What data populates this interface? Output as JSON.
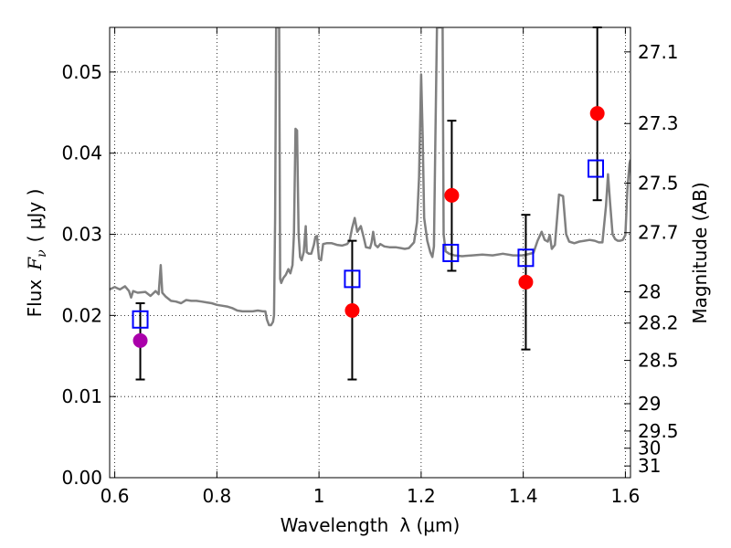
{
  "chart_data": {
    "type": "scatter",
    "title": "",
    "xlabel": "Wavelength",
    "xlabel_math": "λ (μm)",
    "ylabel": "Flux",
    "ylabel_math": "F",
    "ylabel_sub": "ν",
    "ylabel_unit": "( μJy )",
    "y2label": "Magnitude (AB)",
    "xlim": [
      0.59,
      1.61
    ],
    "ylim": [
      0.0,
      0.0555
    ],
    "grid": true,
    "x_ticks": [
      {
        "value": 0.6,
        "label": "0.6"
      },
      {
        "value": 0.8,
        "label": "0.8"
      },
      {
        "value": 1.0,
        "label": "1"
      },
      {
        "value": 1.2,
        "label": "1.2"
      },
      {
        "value": 1.4,
        "label": "1.4"
      },
      {
        "value": 1.6,
        "label": "1.6"
      }
    ],
    "y_ticks": [
      {
        "value": 0.0,
        "label": "0.00"
      },
      {
        "value": 0.01,
        "label": "0.01"
      },
      {
        "value": 0.02,
        "label": "0.02"
      },
      {
        "value": 0.03,
        "label": "0.03"
      },
      {
        "value": 0.04,
        "label": "0.04"
      },
      {
        "value": 0.05,
        "label": "0.05"
      }
    ],
    "y2_ticks": [
      {
        "value": 27.1,
        "label": "27.1"
      },
      {
        "value": 27.3,
        "label": "27.3"
      },
      {
        "value": 27.5,
        "label": "27.5"
      },
      {
        "value": 27.7,
        "label": "27.7"
      },
      {
        "value": 28.0,
        "label": "28"
      },
      {
        "value": 28.2,
        "label": "28.2"
      },
      {
        "value": 28.5,
        "label": "28.5"
      },
      {
        "value": 29.0,
        "label": "29"
      },
      {
        "value": 29.5,
        "label": "29.5"
      },
      {
        "value": 30.0,
        "label": "30"
      },
      {
        "value": 31.0,
        "label": "31"
      }
    ],
    "series": [
      {
        "kind": "line",
        "color": "#808080",
        "points": [
          [
            0.59,
            0.0232
          ],
          [
            0.6,
            0.0235
          ],
          [
            0.61,
            0.0232
          ],
          [
            0.62,
            0.0236
          ],
          [
            0.628,
            0.023
          ],
          [
            0.632,
            0.0222
          ],
          [
            0.636,
            0.023
          ],
          [
            0.645,
            0.0228
          ],
          [
            0.66,
            0.0229
          ],
          [
            0.67,
            0.0224
          ],
          [
            0.68,
            0.023
          ],
          [
            0.686,
            0.0226
          ],
          [
            0.69,
            0.0262
          ],
          [
            0.693,
            0.0228
          ],
          [
            0.7,
            0.0223
          ],
          [
            0.71,
            0.0218
          ],
          [
            0.72,
            0.0217
          ],
          [
            0.73,
            0.0215
          ],
          [
            0.735,
            0.0217
          ],
          [
            0.74,
            0.0219
          ],
          [
            0.75,
            0.0218
          ],
          [
            0.76,
            0.0218
          ],
          [
            0.77,
            0.0217
          ],
          [
            0.78,
            0.0216
          ],
          [
            0.79,
            0.0215
          ],
          [
            0.8,
            0.0213
          ],
          [
            0.81,
            0.0212
          ],
          [
            0.82,
            0.0211
          ],
          [
            0.83,
            0.0209
          ],
          [
            0.84,
            0.0206
          ],
          [
            0.85,
            0.0205
          ],
          [
            0.86,
            0.0205
          ],
          [
            0.87,
            0.0205
          ],
          [
            0.88,
            0.0206
          ],
          [
            0.89,
            0.0205
          ],
          [
            0.895,
            0.0205
          ],
          [
            0.898,
            0.0195
          ],
          [
            0.902,
            0.0188
          ],
          [
            0.906,
            0.0188
          ],
          [
            0.91,
            0.0192
          ],
          [
            0.912,
            0.02
          ],
          [
            0.914,
            0.032
          ],
          [
            0.916,
            0.0555
          ],
          [
            0.918,
            0.0555
          ],
          [
            0.92,
            0.0555
          ],
          [
            0.922,
            0.0555
          ],
          [
            0.924,
            0.0245
          ],
          [
            0.926,
            0.024
          ],
          [
            0.93,
            0.0246
          ],
          [
            0.935,
            0.025
          ],
          [
            0.94,
            0.0257
          ],
          [
            0.944,
            0.0252
          ],
          [
            0.948,
            0.0262
          ],
          [
            0.951,
            0.03
          ],
          [
            0.954,
            0.043
          ],
          [
            0.957,
            0.0428
          ],
          [
            0.96,
            0.03
          ],
          [
            0.963,
            0.0272
          ],
          [
            0.966,
            0.0268
          ],
          [
            0.97,
            0.0278
          ],
          [
            0.974,
            0.031
          ],
          [
            0.976,
            0.0278
          ],
          [
            0.98,
            0.0276
          ],
          [
            0.985,
            0.0276
          ],
          [
            0.99,
            0.0287
          ],
          [
            0.993,
            0.0297
          ],
          [
            0.996,
            0.0298
          ],
          [
            1.0,
            0.027
          ],
          [
            1.004,
            0.0268
          ],
          [
            1.008,
            0.0288
          ],
          [
            1.015,
            0.0289
          ],
          [
            1.025,
            0.0289
          ],
          [
            1.035,
            0.0287
          ],
          [
            1.045,
            0.0286
          ],
          [
            1.055,
            0.0288
          ],
          [
            1.06,
            0.0292
          ],
          [
            1.065,
            0.0308
          ],
          [
            1.07,
            0.032
          ],
          [
            1.075,
            0.0303
          ],
          [
            1.082,
            0.031
          ],
          [
            1.088,
            0.0295
          ],
          [
            1.092,
            0.0284
          ],
          [
            1.1,
            0.0283
          ],
          [
            1.103,
            0.029
          ],
          [
            1.106,
            0.0303
          ],
          [
            1.11,
            0.0287
          ],
          [
            1.115,
            0.0284
          ],
          [
            1.12,
            0.0288
          ],
          [
            1.128,
            0.0285
          ],
          [
            1.138,
            0.0284
          ],
          [
            1.15,
            0.0284
          ],
          [
            1.16,
            0.0283
          ],
          [
            1.168,
            0.0282
          ],
          [
            1.176,
            0.0283
          ],
          [
            1.186,
            0.029
          ],
          [
            1.192,
            0.0315
          ],
          [
            1.196,
            0.037
          ],
          [
            1.2,
            0.0497
          ],
          [
            1.203,
            0.042
          ],
          [
            1.206,
            0.032
          ],
          [
            1.212,
            0.0292
          ],
          [
            1.218,
            0.0278
          ],
          [
            1.222,
            0.0272
          ],
          [
            1.225,
            0.0285
          ],
          [
            1.228,
            0.042
          ],
          [
            1.231,
            0.0555
          ],
          [
            1.233,
            0.0555
          ],
          [
            1.235,
            0.0555
          ],
          [
            1.237,
            0.0555
          ],
          [
            1.24,
            0.0555
          ],
          [
            1.242,
            0.0555
          ],
          [
            1.244,
            0.03
          ],
          [
            1.248,
            0.0279
          ],
          [
            1.255,
            0.0276
          ],
          [
            1.265,
            0.0274
          ],
          [
            1.28,
            0.0273
          ],
          [
            1.3,
            0.0274
          ],
          [
            1.32,
            0.0275
          ],
          [
            1.34,
            0.0274
          ],
          [
            1.36,
            0.0276
          ],
          [
            1.38,
            0.0274
          ],
          [
            1.4,
            0.0274
          ],
          [
            1.42,
            0.0277
          ],
          [
            1.428,
            0.0292
          ],
          [
            1.436,
            0.0303
          ],
          [
            1.442,
            0.0293
          ],
          [
            1.448,
            0.0291
          ],
          [
            1.452,
            0.0299
          ],
          [
            1.456,
            0.0282
          ],
          [
            1.462,
            0.0287
          ],
          [
            1.47,
            0.0349
          ],
          [
            1.478,
            0.0347
          ],
          [
            1.484,
            0.03
          ],
          [
            1.49,
            0.0291
          ],
          [
            1.5,
            0.0289
          ],
          [
            1.51,
            0.0291
          ],
          [
            1.52,
            0.0292
          ],
          [
            1.53,
            0.0293
          ],
          [
            1.54,
            0.0292
          ],
          [
            1.548,
            0.029
          ],
          [
            1.555,
            0.029
          ],
          [
            1.562,
            0.0335
          ],
          [
            1.566,
            0.0374
          ],
          [
            1.57,
            0.034
          ],
          [
            1.575,
            0.03
          ],
          [
            1.58,
            0.0294
          ],
          [
            1.585,
            0.0292
          ],
          [
            1.59,
            0.0292
          ],
          [
            1.595,
            0.0293
          ],
          [
            1.6,
            0.0299
          ],
          [
            1.604,
            0.0355
          ],
          [
            1.608,
            0.0387
          ],
          [
            1.61,
            0.0392
          ]
        ]
      },
      {
        "kind": "open-squares",
        "color": "#0000ff",
        "points": [
          [
            0.65,
            0.0195
          ],
          [
            1.065,
            0.0245
          ],
          [
            1.258,
            0.0277
          ],
          [
            1.405,
            0.0271
          ],
          [
            1.542,
            0.0381
          ]
        ]
      },
      {
        "kind": "dots-with-errorbars",
        "color": "#ff0000",
        "points": [
          {
            "x": 1.065,
            "y": 0.0206,
            "lo": 0.0121,
            "hi": 0.0292
          },
          {
            "x": 1.26,
            "y": 0.0348,
            "lo": 0.0255,
            "hi": 0.044
          },
          {
            "x": 1.405,
            "y": 0.0241,
            "lo": 0.0158,
            "hi": 0.0324
          },
          {
            "x": 1.545,
            "y": 0.0449,
            "lo": 0.0342,
            "hi": 0.0555
          }
        ]
      },
      {
        "kind": "dots-with-errorbars",
        "color": "#aa00aa",
        "points": [
          {
            "x": 0.65,
            "y": 0.0169,
            "lo": 0.0121,
            "hi": 0.0215
          }
        ]
      }
    ]
  }
}
